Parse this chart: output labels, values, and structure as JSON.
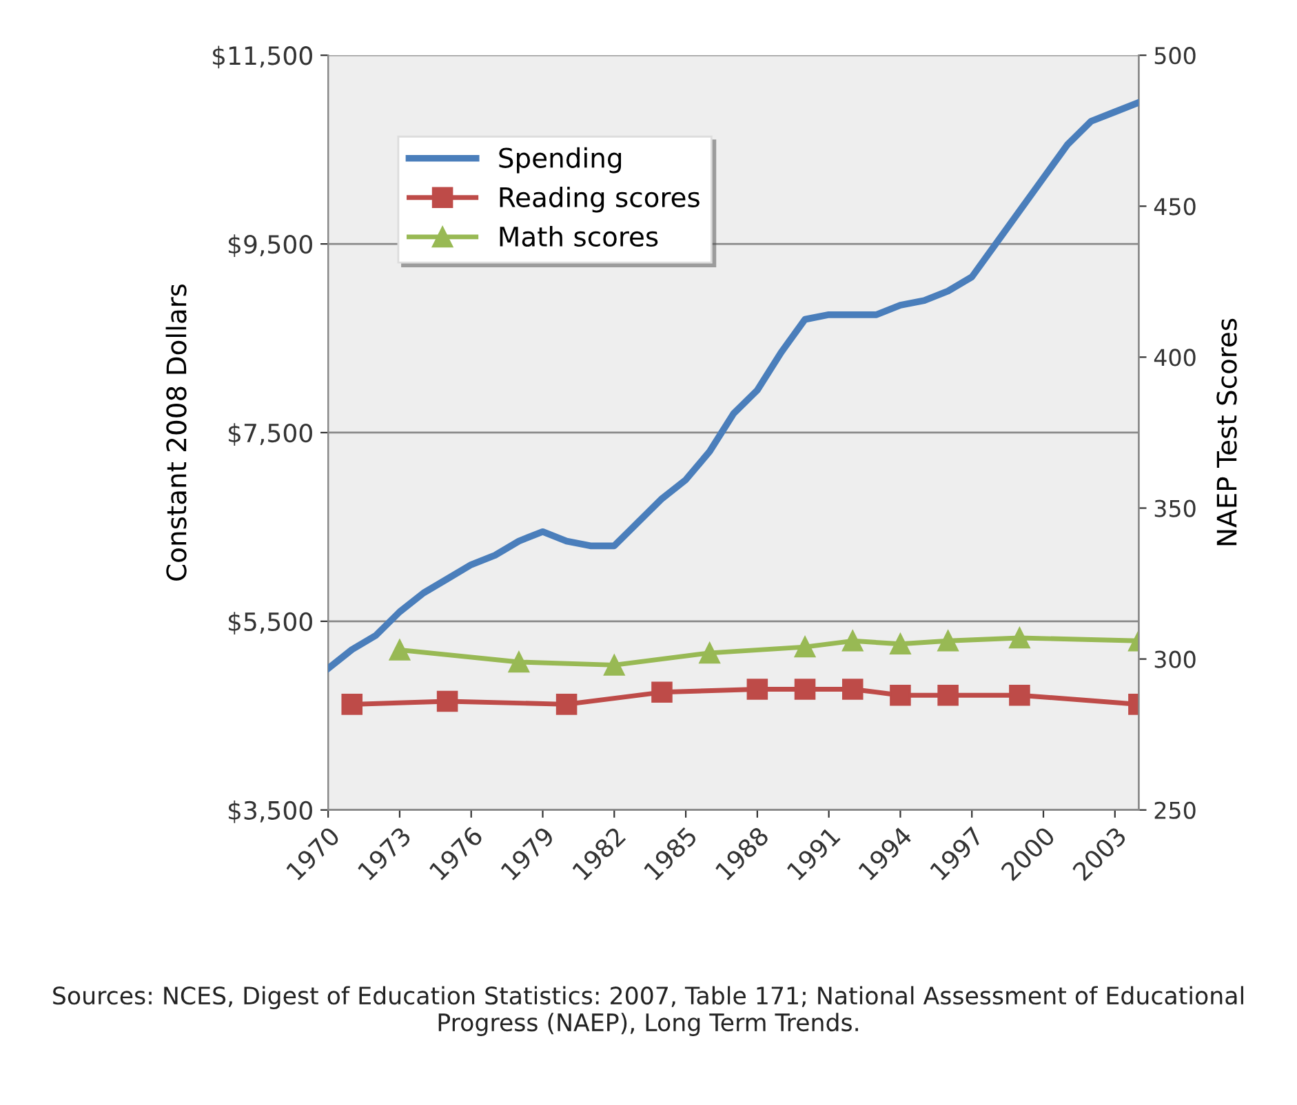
{
  "chart_data": {
    "type": "line",
    "ylabel": "Constant 2008 Dollars",
    "y2label": "NAEP Test Scores",
    "xlim": [
      1970,
      2004
    ],
    "xticks": [
      1970,
      1973,
      1976,
      1979,
      1982,
      1985,
      1988,
      1991,
      1994,
      1997,
      2000,
      2003
    ],
    "ylim": [
      3500,
      11500
    ],
    "yticks": [
      {
        "value": 3500,
        "label": "$3,500"
      },
      {
        "value": 5500,
        "label": "$5,500"
      },
      {
        "value": 7500,
        "label": "$7,500"
      },
      {
        "value": 9500,
        "label": "$9,500"
      },
      {
        "value": 11500,
        "label": "$11,500"
      }
    ],
    "y2lim": [
      250,
      500
    ],
    "y2ticks": [
      250,
      300,
      350,
      400,
      450,
      500
    ],
    "grid": "y",
    "legend": "top left",
    "line_style": "solid",
    "series": [
      {
        "name": "Spending",
        "color": "#4a7ebb",
        "marker": "none",
        "x": [
          1970,
          1971,
          1972,
          1973,
          1974,
          1975,
          1976,
          1977,
          1978,
          1979,
          1980,
          1981,
          1982,
          1983,
          1984,
          1985,
          1986,
          1987,
          1988,
          1989,
          1990,
          1991,
          1992,
          1993,
          1994,
          1995,
          1996,
          1997,
          1998,
          1999,
          2000,
          2001,
          2002,
          2003,
          2004
        ],
        "values": [
          5000,
          5200,
          5350,
          5600,
          5800,
          5950,
          6100,
          6200,
          6350,
          6450,
          6350,
          6300,
          6300,
          6550,
          6800,
          7000,
          7300,
          7700,
          7950,
          8350,
          8700,
          8750,
          8750,
          8750,
          8850,
          8900,
          9000,
          9150,
          9500,
          9850,
          10200,
          10550,
          10800,
          10900,
          11000
        ]
      },
      {
        "name": "Reading scores",
        "color": "#be4b48",
        "marker": "square",
        "axis": "y2",
        "x": [
          1971,
          1975,
          1980,
          1984,
          1988,
          1990,
          1992,
          1994,
          1996,
          1999,
          2004
        ],
        "values": [
          285,
          286,
          285,
          289,
          290,
          290,
          290,
          288,
          288,
          288,
          285
        ]
      },
      {
        "name": "Math scores",
        "color": "#98b954",
        "marker": "triangle",
        "axis": "y2",
        "x": [
          1973,
          1978,
          1982,
          1986,
          1990,
          1992,
          1994,
          1996,
          1999,
          2004
        ],
        "values": [
          303,
          299,
          298,
          302,
          304,
          306,
          305,
          306,
          307,
          306
        ]
      }
    ],
    "annotations": [
      "Sources: NCES, Digest of Education Statistics: 2007, Table 171; National Assessment of Educational Progress (NAEP), Long Term Trends."
    ]
  }
}
